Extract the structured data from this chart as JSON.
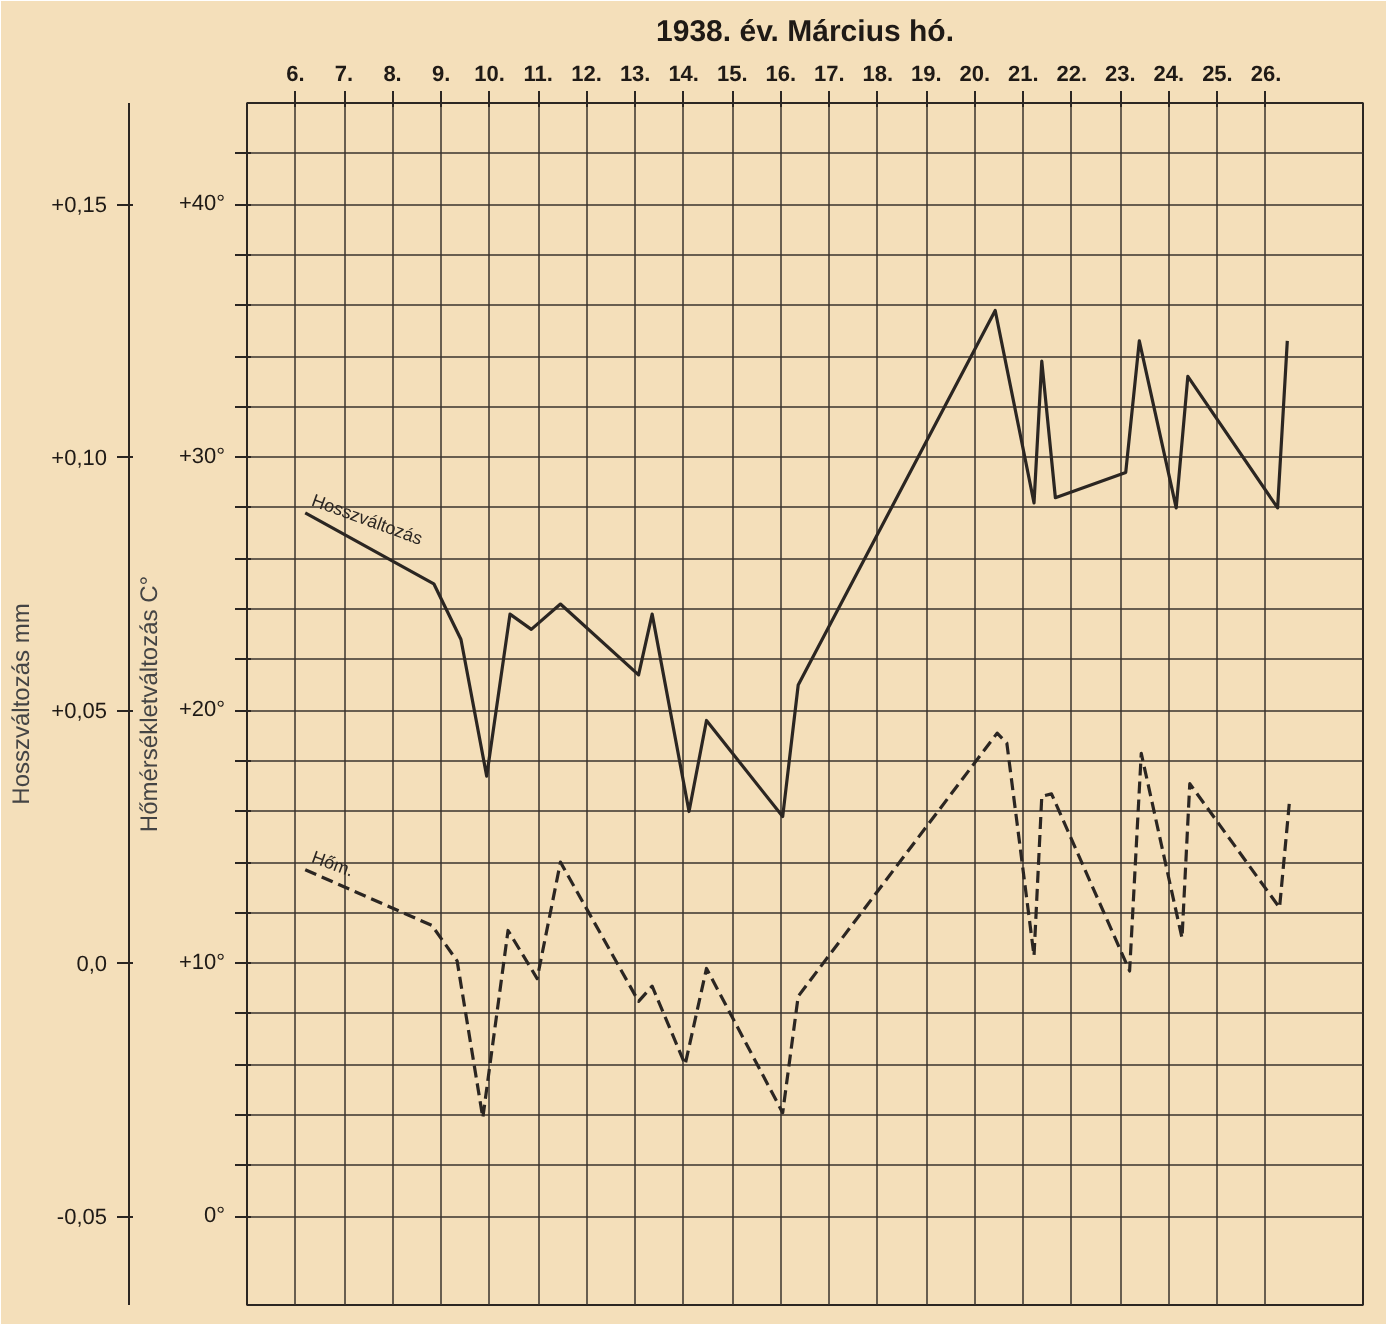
{
  "chart_data": {
    "type": "line",
    "title": "1938. év. Március hó.",
    "ylabel": "Hőmérsékletváltozás C°",
    "y2label": "Hosszváltozás mm",
    "xlim": [
      5.0,
      28.0
    ],
    "xticks": [
      {
        "value": 6,
        "label": "6."
      },
      {
        "value": 7,
        "label": "7."
      },
      {
        "value": 8,
        "label": "8."
      },
      {
        "value": 9,
        "label": "9."
      },
      {
        "value": 10,
        "label": "10."
      },
      {
        "value": 11,
        "label": "11."
      },
      {
        "value": 12,
        "label": "12."
      },
      {
        "value": 13,
        "label": "13."
      },
      {
        "value": 14,
        "label": "14."
      },
      {
        "value": 15,
        "label": "15."
      },
      {
        "value": 16,
        "label": "16."
      },
      {
        "value": 17,
        "label": "17."
      },
      {
        "value": 18,
        "label": "18."
      },
      {
        "value": 19,
        "label": "19."
      },
      {
        "value": 20,
        "label": "20."
      },
      {
        "value": 21,
        "label": "21."
      },
      {
        "value": 22,
        "label": "22."
      },
      {
        "value": 23,
        "label": "23."
      },
      {
        "value": 24,
        "label": "24."
      },
      {
        "value": 25,
        "label": "25."
      },
      {
        "value": 26,
        "label": "26."
      }
    ],
    "ylim": [
      -3.5,
      44
    ],
    "yticks": [
      {
        "value": 0,
        "label": "0°"
      },
      {
        "value": 2,
        "label": null
      },
      {
        "value": 4,
        "label": null
      },
      {
        "value": 6,
        "label": null
      },
      {
        "value": 8,
        "label": null
      },
      {
        "value": 10,
        "label": "+10°"
      },
      {
        "value": 12,
        "label": null
      },
      {
        "value": 14,
        "label": null
      },
      {
        "value": 16,
        "label": null
      },
      {
        "value": 18,
        "label": null
      },
      {
        "value": 20,
        "label": "+20°"
      },
      {
        "value": 22,
        "label": null
      },
      {
        "value": 24,
        "label": null
      },
      {
        "value": 26,
        "label": null
      },
      {
        "value": 28,
        "label": null
      },
      {
        "value": 30,
        "label": "+30°"
      },
      {
        "value": 32,
        "label": null
      },
      {
        "value": 34,
        "label": null
      },
      {
        "value": 36,
        "label": null
      },
      {
        "value": 38,
        "label": null
      },
      {
        "value": 40,
        "label": "+40°"
      },
      {
        "value": 42,
        "label": null
      }
    ],
    "y2lim": [
      -0.0675,
      0.17
    ],
    "y2ticks": [
      {
        "value": -0.05,
        "label": "-0,05"
      },
      {
        "value": 0.0,
        "label": "0,0"
      },
      {
        "value": 0.05,
        "label": "+0,05"
      },
      {
        "value": 0.1,
        "label": "+0,10"
      },
      {
        "value": 0.15,
        "label": "+0,15"
      }
    ],
    "grid": true,
    "marker": "none",
    "series": [
      {
        "name": "Hosszváltozás",
        "color": "#2b2622",
        "axis": "y2",
        "line_style": "solid",
        "x": [
          6.2,
          8.85,
          9.41,
          9.94,
          10.42,
          10.86,
          11.46,
          13.07,
          13.35,
          14.11,
          14.47,
          16.04,
          16.36,
          20.42,
          21.22,
          21.38,
          21.66,
          23.11,
          23.39,
          24.15,
          24.39,
          26.24,
          26.44
        ],
        "values": [
          0.089,
          0.075,
          0.064,
          0.037,
          0.069,
          0.066,
          0.071,
          0.057,
          0.069,
          0.03,
          0.048,
          0.029,
          0.055,
          0.129,
          0.091,
          0.119,
          0.092,
          0.097,
          0.123,
          0.09,
          0.116,
          0.09,
          0.123
        ]
      },
      {
        "name": "Hőm.",
        "color": "#2b2622",
        "line_style": "dashed",
        "x": [
          6.2,
          8.81,
          9.33,
          9.86,
          10.38,
          10.98,
          11.46,
          13.07,
          13.35,
          14.03,
          14.47,
          16.04,
          16.36,
          20.46,
          20.66,
          21.22,
          21.38,
          21.58,
          23.19,
          23.43,
          24.27,
          24.43,
          26.28,
          26.48
        ],
        "values": [
          13.7,
          11.5,
          10.1,
          3.9,
          11.3,
          9.4,
          14.0,
          8.5,
          9.1,
          6.0,
          9.8,
          4.1,
          8.7,
          19.1,
          18.7,
          10.3,
          16.6,
          16.7,
          9.7,
          18.3,
          11.0,
          17.1,
          12.2,
          16.3
        ]
      }
    ]
  }
}
